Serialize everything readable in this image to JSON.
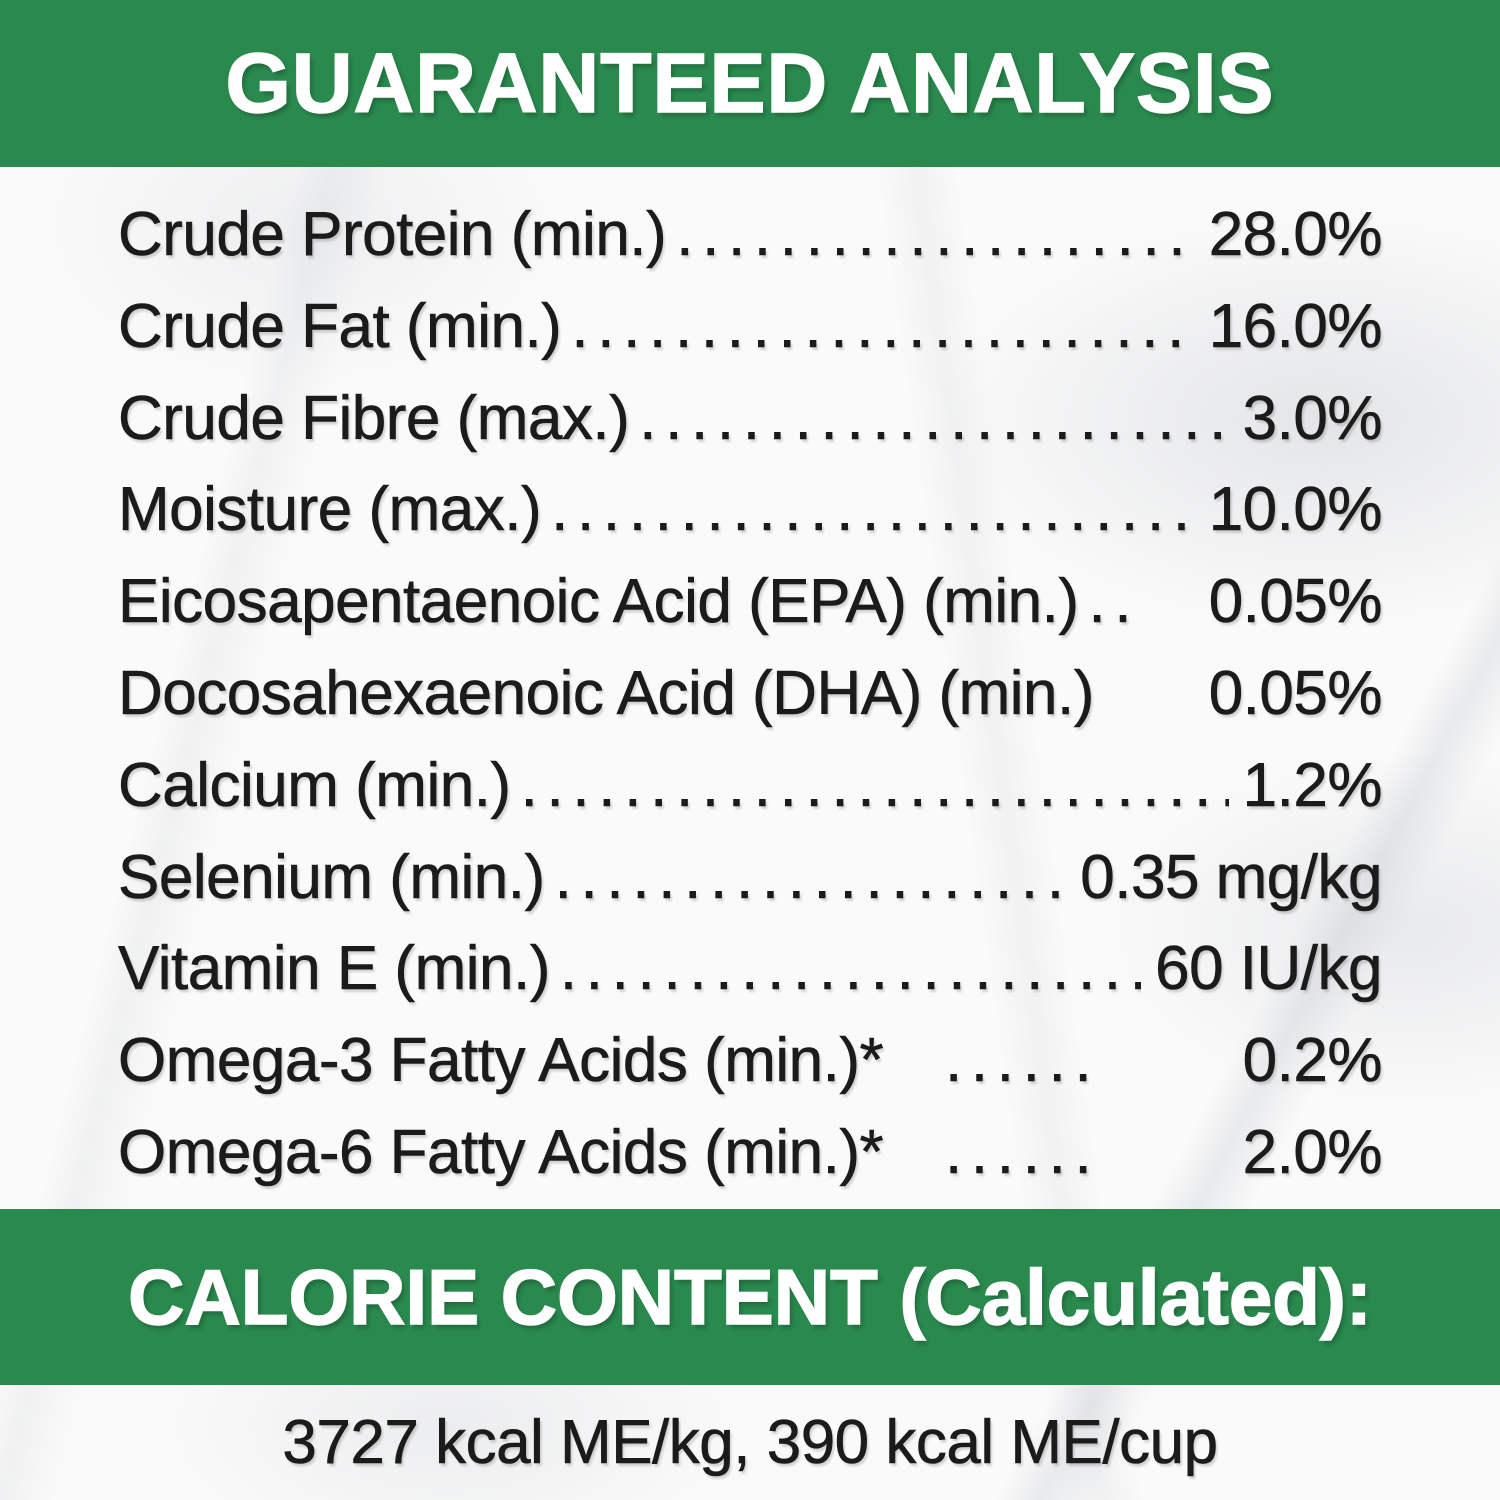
{
  "colors": {
    "banner_green": "#2a8a4e",
    "banner_text": "#ffffff",
    "body_text": "#1b1b1b"
  },
  "header": {
    "title": "GUARANTEED ANALYSIS"
  },
  "analysis": {
    "rows": [
      {
        "label": "Crude Protein (min.)",
        "dots": "................................",
        "value": "28.0%"
      },
      {
        "label": "Crude Fat (min.)",
        "dots": "................................",
        "value": "16.0%"
      },
      {
        "label": "Crude Fibre (max.)",
        "dots": "................................",
        "value": "3.0%"
      },
      {
        "label": "Moisture (max.)",
        "dots": "................................",
        "value": "10.0%"
      },
      {
        "label": "Eicosapentaenoic Acid (EPA) (min.)",
        "dots": "..",
        "value": "0.05%"
      },
      {
        "label": "Docosahexaenoic Acid (DHA) (min.)",
        "dots": "",
        "value": "0.05%"
      },
      {
        "label": "Calcium (min.)",
        "dots": "................................",
        "value": "1.2%"
      },
      {
        "label": "Selenium (min.)",
        "dots": "................................",
        "value": "0.35 mg/kg"
      },
      {
        "label": "Vitamin E (min.)",
        "dots": "................................",
        "value": "60 IU/kg"
      },
      {
        "label": "Omega-3 Fatty Acids (min.)*",
        "dots": "  ......",
        "value": "0.2%"
      },
      {
        "label": "Omega-6 Fatty Acids (min.)*",
        "dots": "  ......",
        "value": "2.0%"
      }
    ]
  },
  "calorie": {
    "title": "CALORIE CONTENT (Calculated):",
    "line": "3727 kcal ME/kg, 390 kcal ME/cup"
  }
}
